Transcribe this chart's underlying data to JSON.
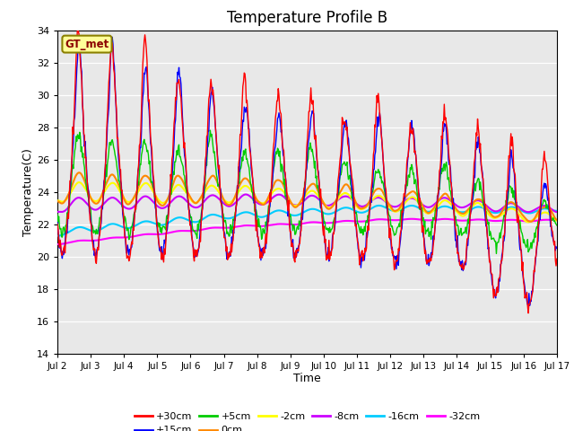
{
  "title": "Temperature Profile B",
  "xlabel": "Time",
  "ylabel": "Temperature(C)",
  "xlim": [
    0,
    15
  ],
  "ylim": [
    14,
    34
  ],
  "yticks": [
    14,
    16,
    18,
    20,
    22,
    24,
    26,
    28,
    30,
    32,
    34
  ],
  "xtick_labels": [
    "Jul 2",
    "Jul 3",
    "Jul 4",
    "Jul 5",
    "Jul 6",
    "Jul 7",
    "Jul 8",
    "Jul 9",
    "Jul 10",
    "Jul 11",
    "Jul 12",
    "Jul 13",
    "Jul 14",
    "Jul 15",
    "Jul 16",
    "Jul 17"
  ],
  "series_labels": [
    "+30cm",
    "+15cm",
    "+5cm",
    "0cm",
    "-2cm",
    "-8cm",
    "-16cm",
    "-32cm"
  ],
  "series_colors": [
    "#ff0000",
    "#0000ff",
    "#00cc00",
    "#ff8800",
    "#ffff00",
    "#cc00ff",
    "#00ccff",
    "#ff00ff"
  ],
  "series_lw": [
    1.0,
    1.0,
    1.0,
    1.5,
    1.5,
    1.5,
    1.5,
    1.5
  ],
  "bg_color": "#e8e8e8",
  "legend_box_color": "#ffff99",
  "legend_box_edge": "#8B8000",
  "gt_met_label": "GT_met",
  "title_fontsize": 12,
  "label_fontsize": 9
}
